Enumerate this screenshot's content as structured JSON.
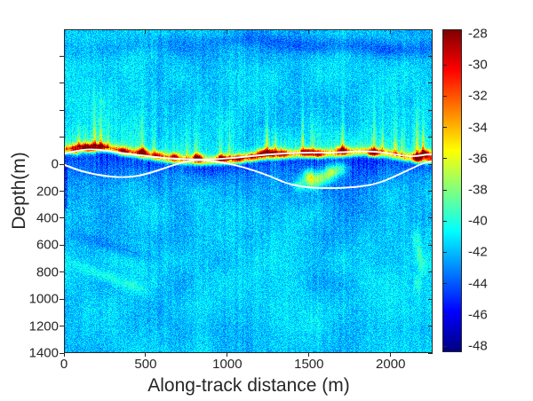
{
  "figure": {
    "background_color": "#ffffff",
    "text_color": "#262626",
    "axis_color": "#262626",
    "trace_line_color": "#ffffff"
  },
  "chart_data": {
    "type": "heatmap",
    "title": "",
    "xlabel": "Along-track distance (m)",
    "ylabel": "Depth(m)",
    "x_range_m": [
      0,
      2257
    ],
    "y_range_m": [
      -1000,
      1400
    ],
    "x_ticks": [
      0,
      500,
      1000,
      1500,
      2000
    ],
    "y_ticks_labeled": [
      0,
      200,
      400,
      600,
      800,
      1000,
      1200,
      1400
    ],
    "y_ticks_unlabeled": [
      -800,
      -600,
      -400,
      -200
    ],
    "grid": false,
    "colormap": "jet",
    "colorbar": {
      "min": -48,
      "max": -28,
      "ticks": [
        -28,
        -30,
        -32,
        -34,
        -36,
        -38,
        -40,
        -42,
        -44,
        -46,
        -48
      ],
      "position": "right"
    },
    "background_db": -41.6,
    "speckle_noise_db": 2.4,
    "traces": {
      "upper_line_m": [
        [
          5,
          -79
        ],
        [
          87,
          -105
        ],
        [
          179,
          -112
        ],
        [
          272,
          -99
        ],
        [
          370,
          -79
        ],
        [
          468,
          -66
        ],
        [
          560,
          -53
        ],
        [
          669,
          -40
        ],
        [
          859,
          -33
        ],
        [
          1050,
          -46
        ],
        [
          1240,
          -73
        ],
        [
          1458,
          -86
        ],
        [
          1675,
          -86
        ],
        [
          1838,
          -99
        ],
        [
          1974,
          -86
        ],
        [
          2083,
          -59
        ],
        [
          2164,
          -59
        ],
        [
          2219,
          -73
        ],
        [
          2257,
          -73
        ]
      ],
      "lower_line_m": [
        [
          5,
          6
        ],
        [
          87,
          45
        ],
        [
          179,
          72
        ],
        [
          272,
          91
        ],
        [
          370,
          98
        ],
        [
          468,
          85
        ],
        [
          560,
          52
        ],
        [
          642,
          19
        ],
        [
          723,
          -14
        ],
        [
          821,
          -34
        ],
        [
          941,
          -20
        ],
        [
          1050,
          6
        ],
        [
          1158,
          45
        ],
        [
          1267,
          91
        ],
        [
          1349,
          137
        ],
        [
          1441,
          164
        ],
        [
          1539,
          177
        ],
        [
          1675,
          177
        ],
        [
          1784,
          170
        ],
        [
          1893,
          151
        ],
        [
          1974,
          118
        ],
        [
          2056,
          72
        ],
        [
          2138,
          26
        ],
        [
          2209,
          -14
        ],
        [
          2257,
          -20
        ]
      ]
    },
    "features": {
      "surface_band_db": 6.2,
      "shadow_db": 3.6,
      "surface_blobs": [
        [
          71,
          -99,
          8
        ],
        [
          125,
          -119,
          7
        ],
        [
          169,
          -112,
          9
        ],
        [
          223,
          -125,
          7
        ],
        [
          359,
          -99,
          6
        ],
        [
          479,
          -93,
          10
        ],
        [
          577,
          -73,
          6
        ],
        [
          674,
          -60,
          7
        ],
        [
          816,
          -53,
          10
        ],
        [
          968,
          -47,
          9
        ],
        [
          1066,
          -47,
          7
        ],
        [
          1148,
          -60,
          6
        ],
        [
          1213,
          -86,
          10
        ],
        [
          1267,
          -93,
          8
        ],
        [
          1332,
          -86,
          7
        ],
        [
          1485,
          -93,
          9
        ],
        [
          1555,
          -80,
          7
        ],
        [
          1702,
          -106,
          9
        ],
        [
          1893,
          -86,
          9
        ],
        [
          2164,
          -40,
          11
        ],
        [
          2202,
          -86,
          8
        ],
        [
          2235,
          -34,
          9
        ]
      ],
      "subsurface_blobs": [
        [
          1441,
          151,
          3.5
        ],
        [
          1501,
          85,
          6
        ],
        [
          1523,
          137,
          4
        ],
        [
          1577,
          98,
          5
        ],
        [
          1632,
          59,
          6
        ],
        [
          1691,
          32,
          4
        ]
      ],
      "plumes": [
        [
          87,
          4,
          130
        ],
        [
          185,
          5,
          150
        ],
        [
          223,
          6,
          165
        ],
        [
          267,
          4,
          120
        ],
        [
          479,
          5,
          140
        ],
        [
          549,
          4,
          110
        ],
        [
          751,
          4,
          100
        ],
        [
          805,
          5,
          120
        ],
        [
          957,
          4,
          100
        ],
        [
          1012,
          4,
          95
        ],
        [
          1240,
          7,
          200
        ],
        [
          1294,
          4,
          120
        ],
        [
          1458,
          5,
          110
        ],
        [
          1523,
          4,
          95
        ],
        [
          1702,
          5,
          120
        ],
        [
          1893,
          4,
          100
        ],
        [
          1947,
          4,
          95
        ],
        [
          2029,
          5,
          135
        ],
        [
          2067,
          4,
          110
        ],
        [
          2159,
          7,
          200
        ],
        [
          2197,
          6,
          175
        ]
      ],
      "bright_streak": {
        "from": [
          16,
          723
        ],
        "to": [
          533,
          953
        ],
        "amp_db": 1.8
      },
      "dark_streak": {
        "from": [
          16,
          506
        ],
        "to": [
          615,
          723
        ],
        "amp_db": -1.1
      },
      "deep_spots": [
        [
          2153,
          545
        ],
        [
          2175,
          657
        ],
        [
          2197,
          756
        ],
        [
          2164,
          887
        ]
      ]
    }
  }
}
